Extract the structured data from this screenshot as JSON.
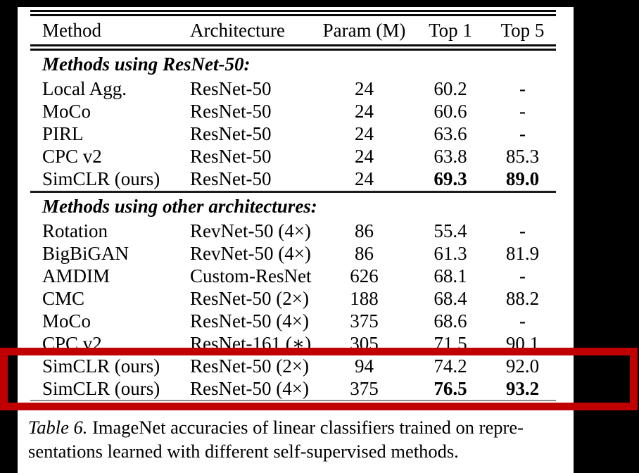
{
  "accent": {
    "highlight_color": "#c00000"
  },
  "table": {
    "headers": [
      "Method",
      "Architecture",
      "Param (M)",
      "Top 1",
      "Top 5"
    ],
    "sections": [
      {
        "title": "Methods using ResNet-50:",
        "rows": [
          {
            "method": "Local Agg.",
            "arch": "ResNet-50",
            "param": "24",
            "top1": "60.2",
            "top5": "-"
          },
          {
            "method": "MoCo",
            "arch": "ResNet-50",
            "param": "24",
            "top1": "60.6",
            "top5": "-"
          },
          {
            "method": "PIRL",
            "arch": "ResNet-50",
            "param": "24",
            "top1": "63.6",
            "top5": "-"
          },
          {
            "method": "CPC v2",
            "arch": "ResNet-50",
            "param": "24",
            "top1": "63.8",
            "top5": "85.3"
          },
          {
            "method": "SimCLR (ours)",
            "arch": "ResNet-50",
            "param": "24",
            "top1": "69.3",
            "top5": "89.0"
          }
        ]
      },
      {
        "title": "Methods using other architectures:",
        "rows": [
          {
            "method": "Rotation",
            "arch": "RevNet-50 (4×)",
            "param": "86",
            "top1": "55.4",
            "top5": "-"
          },
          {
            "method": "BigBiGAN",
            "arch": "RevNet-50 (4×)",
            "param": "86",
            "top1": "61.3",
            "top5": "81.9"
          },
          {
            "method": "AMDIM",
            "arch": "Custom-ResNet",
            "param": "626",
            "top1": "68.1",
            "top5": "-"
          },
          {
            "method": "CMC",
            "arch": "ResNet-50 (2×)",
            "param": "188",
            "top1": "68.4",
            "top5": "88.2"
          },
          {
            "method": "MoCo",
            "arch": "ResNet-50 (4×)",
            "param": "375",
            "top1": "68.6",
            "top5": "-"
          },
          {
            "method": "CPC v2",
            "arch": "ResNet-161 (∗)",
            "param": "305",
            "top1": "71.5",
            "top5": "90.1"
          },
          {
            "method": "SimCLR (ours)",
            "arch": "ResNet-50 (2×)",
            "param": "94",
            "top1": "74.2",
            "top5": "92.0"
          },
          {
            "method": "SimCLR (ours)",
            "arch": "ResNet-50 (4×)",
            "param": "375",
            "top1": "76.5",
            "top5": "93.2"
          }
        ]
      }
    ]
  },
  "caption": {
    "label": "Table 6.",
    "line1": "ImageNet accuracies of linear classifiers trained on repre-",
    "line2": "sentations learned with different self-supervised methods."
  }
}
